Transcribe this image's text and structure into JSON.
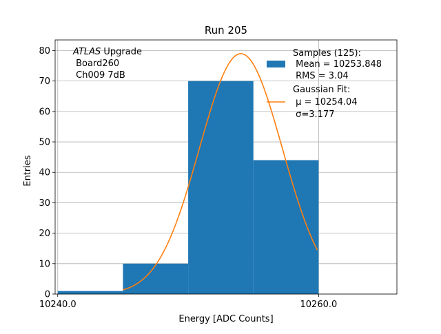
{
  "chart_data": {
    "type": "bar",
    "title": "Run 205",
    "xlabel": "Energy [ADC Counts]",
    "ylabel": "Entries",
    "xlim": [
      10239.8,
      10266.0
    ],
    "ylim": [
      0,
      83.5
    ],
    "grid": true,
    "x_ticks": [
      {
        "value": 10240,
        "label": "10240.0"
      },
      {
        "value": 10260,
        "label": "10260.0"
      }
    ],
    "y_ticks": [
      {
        "value": 0,
        "label": "0"
      },
      {
        "value": 10,
        "label": "10"
      },
      {
        "value": 20,
        "label": "20"
      },
      {
        "value": 30,
        "label": "30"
      },
      {
        "value": 40,
        "label": "40"
      },
      {
        "value": 50,
        "label": "50"
      },
      {
        "value": 60,
        "label": "60"
      },
      {
        "value": 70,
        "label": "70"
      },
      {
        "value": 80,
        "label": "80"
      }
    ],
    "histogram": {
      "name": "Samples (125):",
      "color": "#1f77b4",
      "bins": [
        {
          "start": 10240,
          "end": 10245,
          "count": 1
        },
        {
          "start": 10245,
          "end": 10250,
          "count": 10
        },
        {
          "start": 10250,
          "end": 10255,
          "count": 70
        },
        {
          "start": 10255,
          "end": 10260,
          "count": 44
        }
      ]
    },
    "fit": {
      "name": "Gaussian Fit:",
      "color": "#ff7f0e",
      "amplitude": 79.0,
      "mu": 10254.04,
      "sigma": 3.177,
      "x_range": [
        10245.0,
        10259.9
      ]
    },
    "legend": {
      "placement": "top-right",
      "entries": [
        {
          "series": "histogram",
          "lines": [
            "Samples (125):",
            " Mean = 10253.848",
            " RMS = 3.04"
          ]
        },
        {
          "series": "fit",
          "lines": [
            "Gaussian Fit:",
            " μ = 10254.04",
            " σ=3.177"
          ]
        }
      ]
    },
    "annotation": {
      "placement": "top-left",
      "italic_part": "ATLAS",
      "rest_first_line": " Upgrade",
      "lines": [
        " Board260",
        " Ch009 7dB"
      ]
    }
  }
}
